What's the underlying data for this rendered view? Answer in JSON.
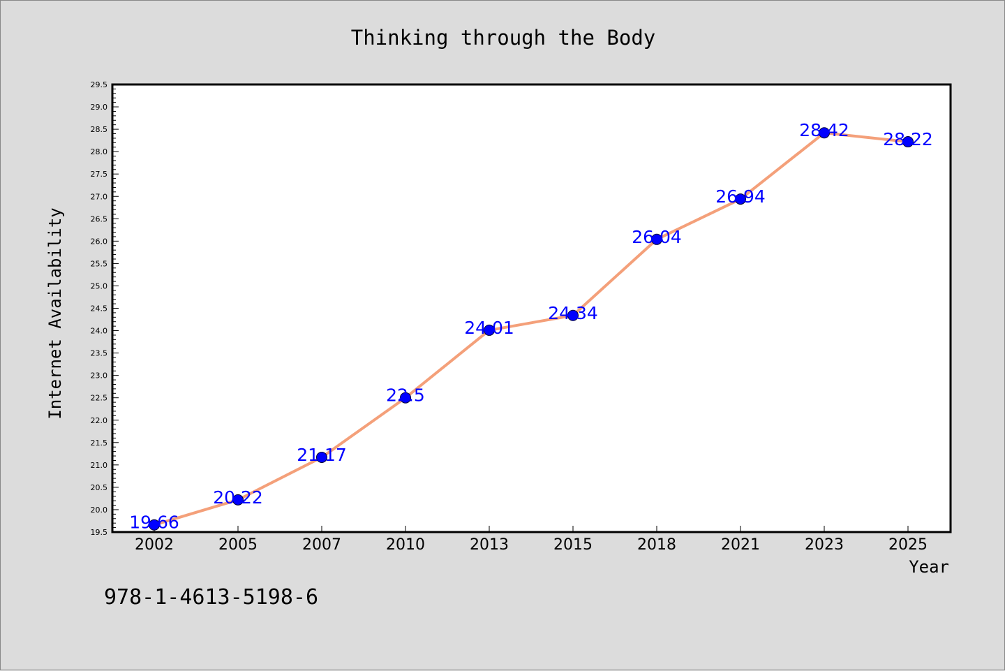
{
  "chart_data": {
    "type": "line",
    "title": "Thinking through the Body",
    "xlabel": "Year",
    "ylabel": "Internet Availability",
    "categories": [
      "2002",
      "2005",
      "2007",
      "2010",
      "2013",
      "2015",
      "2018",
      "2021",
      "2023",
      "2025"
    ],
    "series": [
      {
        "values": [
          19.66,
          20.22,
          21.17,
          22.5,
          24.01,
          24.34,
          26.04,
          26.94,
          28.42,
          28.22
        ],
        "data_labels": [
          "19.66",
          "20.22",
          "21.17",
          "22.5",
          "24.01",
          "24.34",
          "26.04",
          "26.94",
          "28.42",
          "28.22"
        ],
        "line_color": "#f4a07a",
        "marker_color": "#0000ff"
      }
    ],
    "ylim": [
      19.5,
      29.5
    ],
    "yticks": [
      "19.5",
      "20.0",
      "20.5",
      "21.0",
      "21.5",
      "22.0",
      "22.5",
      "23.0",
      "23.5",
      "24.0",
      "24.5",
      "25.0",
      "25.5",
      "26.0",
      "26.5",
      "27.0",
      "27.5",
      "28.0",
      "28.5",
      "29.0",
      "29.5"
    ],
    "grid": false,
    "legend": "none"
  },
  "footer": {
    "isbn": "978-1-4613-5198-6"
  },
  "colors": {
    "background": "#dcdcdc",
    "plot_background": "#ffffff",
    "line": "#f4a07a",
    "marker": "#0000ff",
    "data_label": "#0000ff"
  }
}
